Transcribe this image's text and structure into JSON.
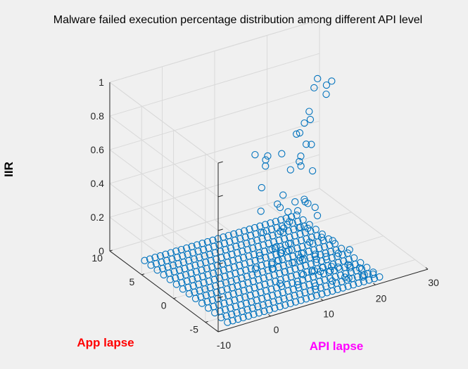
{
  "chart_data": {
    "type": "scatter3d",
    "title": "Malware failed execution percentage distribution among different API level",
    "xlabel": "API lapse",
    "ylabel": "App lapse",
    "zlabel": "IIR",
    "xlim": [
      -10,
      30
    ],
    "ylim": [
      -7,
      10
    ],
    "zlim": [
      0,
      1
    ],
    "xticks": [
      "-10",
      "0",
      "10",
      "20",
      "30"
    ],
    "yticks": [
      "-5",
      "0",
      "5",
      "10"
    ],
    "zticks": [
      "0",
      "0.2",
      "0.4",
      "0.6",
      "0.8",
      "1"
    ],
    "grid": true,
    "marker": "open-circle",
    "colors": {
      "marker": "#0072bd",
      "xlabel": "#ff00ff",
      "ylabel": "#ff0000",
      "zlabel": "#000000",
      "grid": "#d9d9d9",
      "background": "#f0f0f0"
    },
    "grid_points": {
      "x_range": [
        -7,
        22
      ],
      "y_range": [
        -6,
        7
      ],
      "z": 0
    },
    "points": [
      [
        20.5,
        2.5,
        0.95
      ],
      [
        22.6,
        2.0,
        0.93
      ],
      [
        19.6,
        2.3,
        0.91
      ],
      [
        21.3,
        1.8,
        0.87
      ],
      [
        22.7,
        2.9,
        0.88
      ],
      [
        17.3,
        1.0,
        0.78
      ],
      [
        18.3,
        2.0,
        0.79
      ],
      [
        14.9,
        1.2,
        0.71
      ],
      [
        16.5,
        2.0,
        0.68
      ],
      [
        18.0,
        2.5,
        0.71
      ],
      [
        15.3,
        0.0,
        0.68
      ],
      [
        12.7,
        1.7,
        0.6
      ],
      [
        17.5,
        1.0,
        0.63
      ],
      [
        11.0,
        2.5,
        0.58
      ],
      [
        9.2,
        3.0,
        0.59
      ],
      [
        10.0,
        2.0,
        0.58
      ],
      [
        14.3,
        0.0,
        0.56
      ],
      [
        15.2,
        1.0,
        0.55
      ],
      [
        16.7,
        2.0,
        0.54
      ],
      [
        12.8,
        0.4,
        0.54
      ],
      [
        10.7,
        2.6,
        0.52
      ],
      [
        15.3,
        -1.0,
        0.55
      ],
      [
        11.5,
        0.5,
        0.4
      ],
      [
        9.0,
        1.8,
        0.43
      ],
      [
        13.6,
        -1.1,
        0.4
      ],
      [
        10.3,
        0.4,
        0.36
      ],
      [
        12.8,
        -0.3,
        0.37
      ],
      [
        14.5,
        -0.5,
        0.36
      ],
      [
        15.5,
        -0.1,
        0.33
      ],
      [
        17.0,
        0.0,
        0.29
      ],
      [
        16.1,
        -1.1,
        0.28
      ],
      [
        8.6,
        1.6,
        0.3
      ],
      [
        11.3,
        0.8,
        0.32
      ],
      [
        13.7,
        0.0,
        0.3
      ],
      [
        12.2,
        0.3,
        0.3
      ],
      [
        11.5,
        -0.5,
        0.27
      ],
      [
        10.2,
        -0.7,
        0.25
      ],
      [
        12.6,
        -1.3,
        0.25
      ],
      [
        14.0,
        -1.3,
        0.23
      ],
      [
        9.4,
        -0.8,
        0.24
      ],
      [
        8.1,
        0.8,
        0.2
      ],
      [
        7.9,
        -1.4,
        0.18
      ],
      [
        10.5,
        -1.2,
        0.17
      ],
      [
        13.3,
        -2.2,
        0.18
      ],
      [
        15.8,
        -2.0,
        0.18
      ],
      [
        16.7,
        -3.0,
        0.18
      ],
      [
        11.4,
        -2.5,
        0.14
      ],
      [
        13.4,
        -3.0,
        0.13
      ],
      [
        15.3,
        -3.1,
        0.1
      ],
      [
        17.3,
        -3.4,
        0.11
      ],
      [
        19.8,
        -3.1,
        0.1
      ],
      [
        9.0,
        -3.0,
        0.12
      ],
      [
        11.8,
        -4.2,
        0.08
      ],
      [
        6.4,
        -2.0,
        0.08
      ],
      [
        8.2,
        -2.5,
        0.06
      ],
      [
        10.5,
        -3.5,
        0.05
      ],
      [
        13.4,
        -3.8,
        0.05
      ],
      [
        16.3,
        -4.2,
        0.06
      ],
      [
        7.5,
        -1.0,
        0.07
      ],
      [
        9.8,
        -0.5,
        0.1
      ],
      [
        12.0,
        -1.8,
        0.09
      ],
      [
        14.5,
        -2.3,
        0.07
      ],
      [
        18.4,
        -4.0,
        0.05
      ],
      [
        5.0,
        -0.5,
        0.05
      ],
      [
        6.8,
        0.3,
        0.09
      ],
      [
        8.8,
        0.0,
        0.12
      ],
      [
        10.8,
        -1.0,
        0.12
      ],
      [
        12.5,
        -3.2,
        0.04
      ],
      [
        15.5,
        -3.6,
        0.03
      ],
      [
        8.8,
        -4.0,
        0.02
      ],
      [
        11.0,
        -5.0,
        0.02
      ],
      [
        14.2,
        -5.0,
        0.02
      ],
      [
        17.0,
        -5.3,
        0.02
      ],
      [
        19.7,
        -5.5,
        0.02
      ],
      [
        6.3,
        -3.3,
        0.03
      ],
      [
        9.0,
        -1.4,
        0.15
      ],
      [
        11.2,
        -2.8,
        0.11
      ],
      [
        14.9,
        -4.3,
        0.08
      ],
      [
        17.8,
        -4.8,
        0.06
      ],
      [
        20.0,
        -4.5,
        0.03
      ],
      [
        7.0,
        -2.5,
        0.14
      ],
      [
        12.9,
        -4.6,
        0.1
      ],
      [
        16.0,
        -5.5,
        0.04
      ],
      [
        18.8,
        -6.0,
        0.03
      ],
      [
        21.0,
        -5.8,
        0.02
      ]
    ]
  }
}
